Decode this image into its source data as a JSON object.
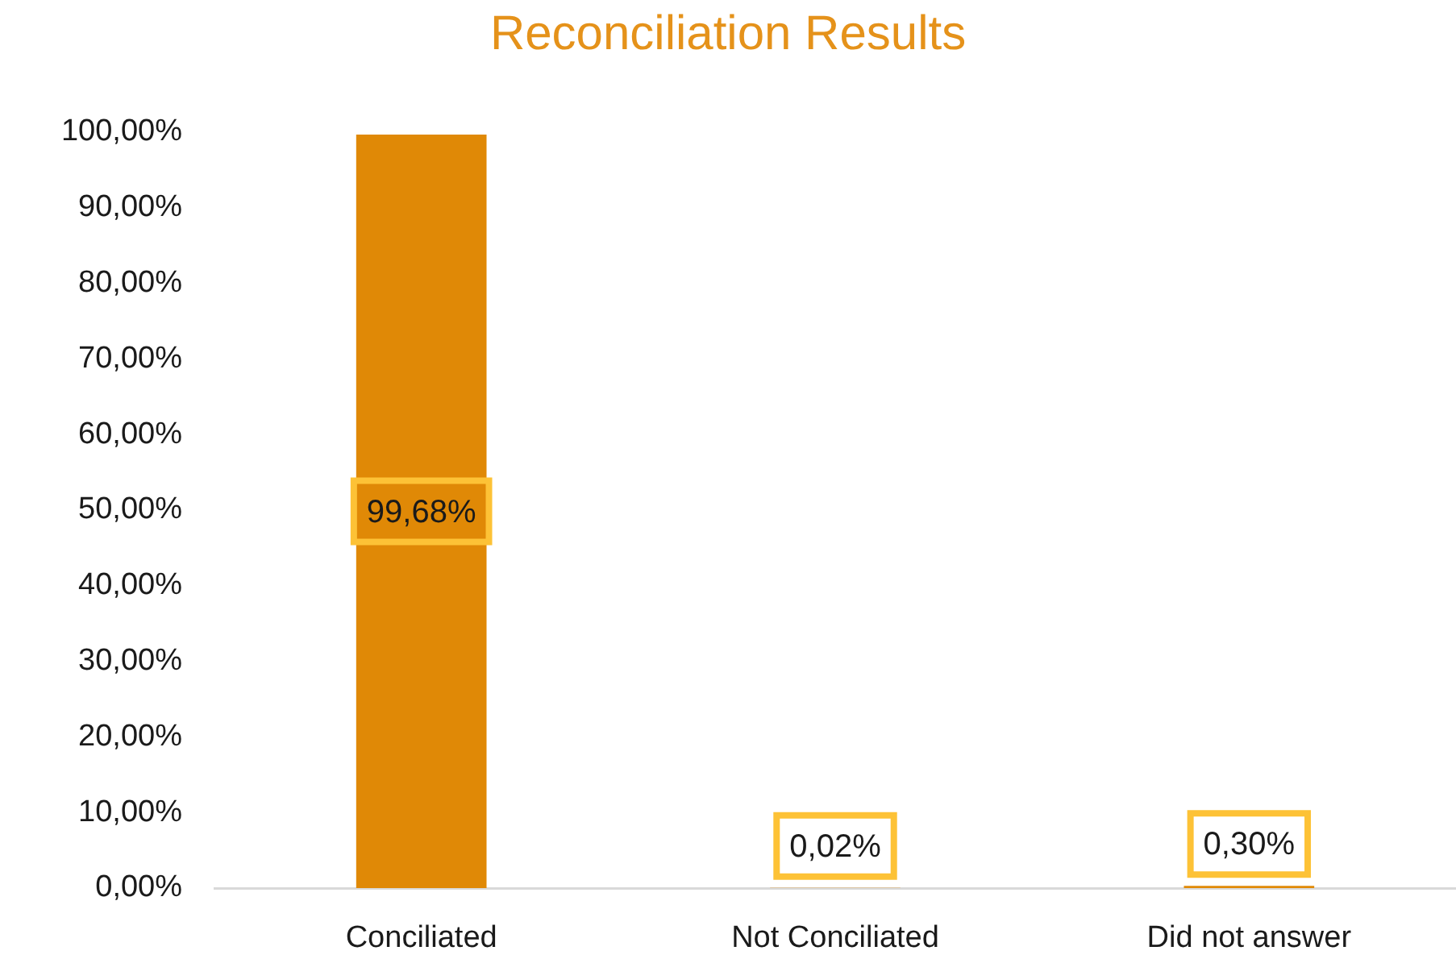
{
  "chart_data": {
    "type": "bar",
    "title": "Reconciliation Results",
    "categories": [
      "Conciliated",
      "Not Conciliated",
      "Did not answer"
    ],
    "values": [
      99.68,
      0.02,
      0.3
    ],
    "color": "#e08906",
    "value_labels": [
      "99,68%",
      "0,02%",
      "0,30%"
    ],
    "ylim": [
      0,
      100
    ],
    "yticks": [
      {
        "value": 0,
        "label": "0,00%"
      },
      {
        "value": 10,
        "label": "10,00%"
      },
      {
        "value": 20,
        "label": "20,00%"
      },
      {
        "value": 30,
        "label": "30,00%"
      },
      {
        "value": 40,
        "label": "40,00%"
      },
      {
        "value": 50,
        "label": "50,00%"
      },
      {
        "value": 60,
        "label": "60,00%"
      },
      {
        "value": 70,
        "label": "70,00%"
      },
      {
        "value": 80,
        "label": "80,00%"
      },
      {
        "value": 90,
        "label": "90,00%"
      },
      {
        "value": 100,
        "label": "100,00%"
      }
    ]
  }
}
